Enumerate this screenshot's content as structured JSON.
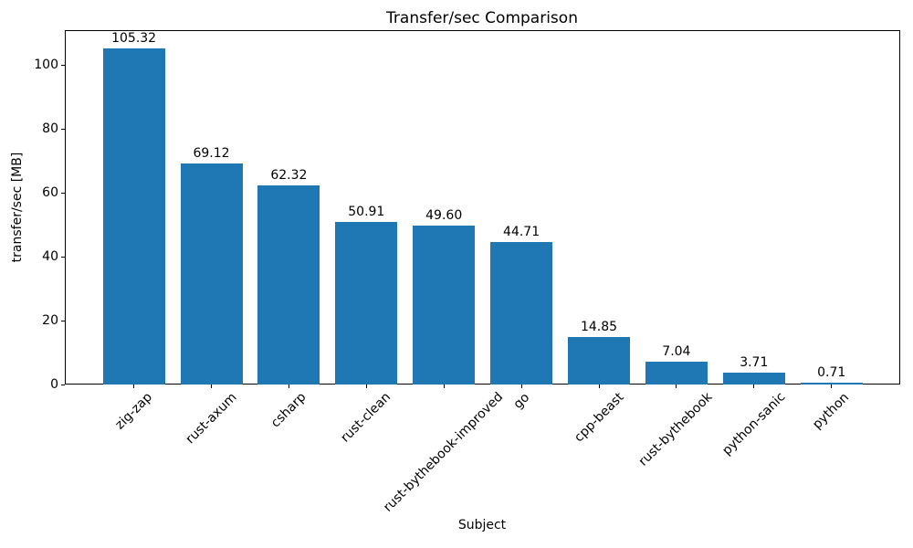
{
  "chart_data": {
    "type": "bar",
    "title": "Transfer/sec Comparison",
    "xlabel": "Subject",
    "ylabel": "transfer/sec [MB]",
    "categories": [
      "zig-zap",
      "rust-axum",
      "csharp",
      "rust-clean",
      "rust-bythebook-improved",
      "go",
      "cpp-beast",
      "rust-bythebook",
      "python-sanic",
      "python"
    ],
    "values": [
      105.32,
      69.12,
      62.32,
      50.91,
      49.6,
      44.71,
      14.85,
      7.04,
      3.71,
      0.71
    ],
    "value_labels": [
      "105.32",
      "69.12",
      "62.32",
      "50.91",
      "49.60",
      "44.71",
      "14.85",
      "7.04",
      "3.71",
      "0.71"
    ],
    "yticks": [
      0,
      20,
      40,
      60,
      80,
      100
    ],
    "ylim": [
      0,
      110.9
    ],
    "bar_color": "#1f77b4",
    "text_color": "#000000",
    "grid": false,
    "legend": null
  }
}
